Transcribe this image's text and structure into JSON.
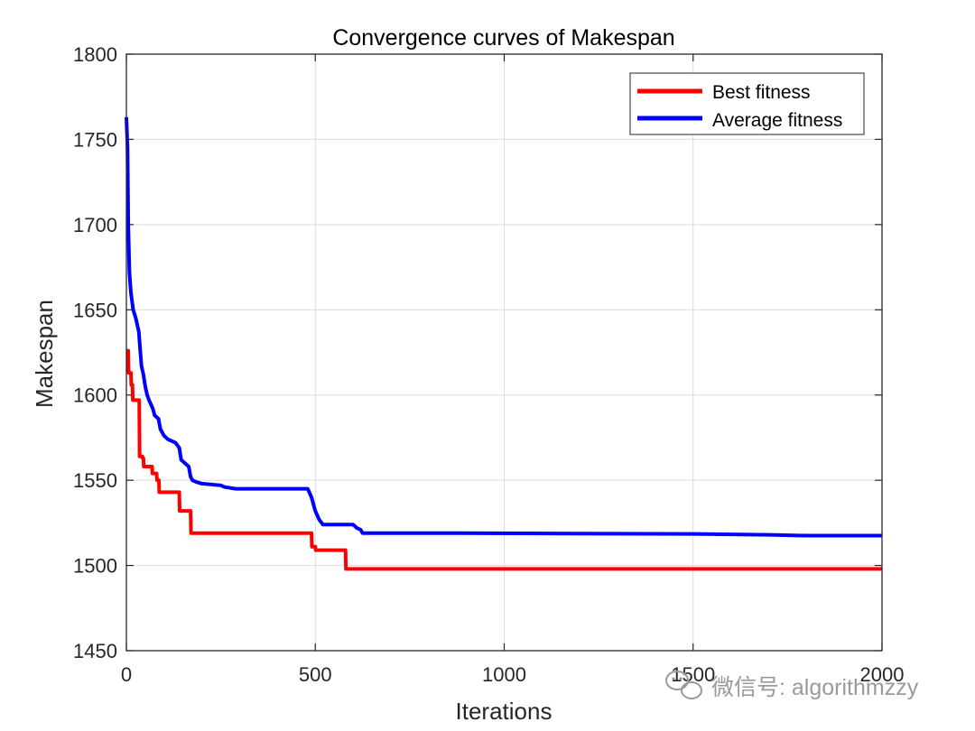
{
  "chart_data": {
    "type": "line",
    "title": "Convergence curves of Makespan",
    "xlabel": "Iterations",
    "ylabel": "Makespan",
    "xlim": [
      0,
      2000
    ],
    "ylim": [
      1450,
      1800
    ],
    "xticks": [
      "0",
      "500",
      "1000",
      "1500",
      "2000"
    ],
    "yticks": [
      "1450",
      "1500",
      "1550",
      "1600",
      "1650",
      "1700",
      "1750",
      "1800"
    ],
    "grid": true,
    "legend_position": "top-right",
    "series": [
      {
        "name": "Best fitness",
        "color": "#ff0000",
        "points": [
          [
            0,
            1626
          ],
          [
            5,
            1626
          ],
          [
            6,
            1613
          ],
          [
            12,
            1613
          ],
          [
            13,
            1606
          ],
          [
            16,
            1606
          ],
          [
            17,
            1597
          ],
          [
            34,
            1597
          ],
          [
            35,
            1564
          ],
          [
            42,
            1564
          ],
          [
            43,
            1563
          ],
          [
            45,
            1563
          ],
          [
            46,
            1558
          ],
          [
            68,
            1558
          ],
          [
            69,
            1554
          ],
          [
            80,
            1554
          ],
          [
            81,
            1550
          ],
          [
            86,
            1550
          ],
          [
            87,
            1543
          ],
          [
            140,
            1543
          ],
          [
            141,
            1532
          ],
          [
            170,
            1532
          ],
          [
            171,
            1519
          ],
          [
            490,
            1519
          ],
          [
            491,
            1511
          ],
          [
            500,
            1511
          ],
          [
            501,
            1509
          ],
          [
            580,
            1509
          ],
          [
            581,
            1498
          ],
          [
            2000,
            1498
          ]
        ]
      },
      {
        "name": "Average fitness",
        "color": "#0000ff",
        "points": [
          [
            0,
            1763
          ],
          [
            3,
            1745
          ],
          [
            5,
            1700
          ],
          [
            8,
            1672
          ],
          [
            12,
            1660
          ],
          [
            18,
            1650
          ],
          [
            25,
            1645
          ],
          [
            33,
            1637
          ],
          [
            37,
            1625
          ],
          [
            40,
            1617
          ],
          [
            45,
            1612
          ],
          [
            50,
            1605
          ],
          [
            55,
            1600
          ],
          [
            60,
            1597
          ],
          [
            70,
            1592
          ],
          [
            75,
            1588
          ],
          [
            85,
            1586
          ],
          [
            90,
            1580
          ],
          [
            100,
            1576
          ],
          [
            110,
            1574
          ],
          [
            130,
            1572
          ],
          [
            140,
            1569
          ],
          [
            145,
            1562
          ],
          [
            155,
            1560
          ],
          [
            165,
            1558
          ],
          [
            170,
            1552
          ],
          [
            175,
            1550
          ],
          [
            185,
            1549
          ],
          [
            200,
            1548
          ],
          [
            250,
            1547
          ],
          [
            260,
            1546
          ],
          [
            290,
            1545
          ],
          [
            480,
            1545
          ],
          [
            490,
            1540
          ],
          [
            500,
            1532
          ],
          [
            510,
            1527
          ],
          [
            520,
            1524
          ],
          [
            600,
            1524
          ],
          [
            610,
            1522
          ],
          [
            620,
            1521
          ],
          [
            625,
            1519
          ],
          [
            800,
            1519
          ],
          [
            1500,
            1518.5
          ],
          [
            1700,
            1518
          ],
          [
            1800,
            1517.5
          ],
          [
            2000,
            1517.5
          ]
        ]
      }
    ]
  },
  "watermark": {
    "text": "微信号: algorithmzzy",
    "icon": "wechat-icon"
  }
}
